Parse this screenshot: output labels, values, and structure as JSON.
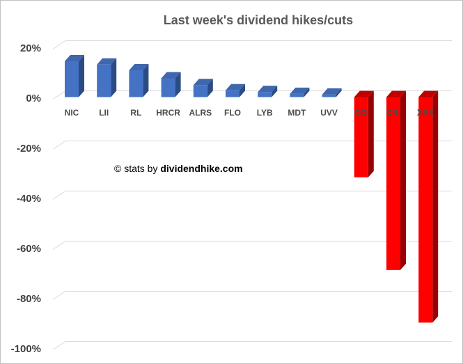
{
  "watermark": {
    "prefix": "© stats by ",
    "brand": "dividendhike.com"
  },
  "colors": {
    "blue_front": "#4472C4",
    "blue_side": "#2B4B84",
    "blue_top": "#3F67AE",
    "red_front": "#FE0000",
    "red_side": "#9B0000",
    "red_top": "#C00000",
    "grid": "#D9D9D9",
    "title_text": "#595959",
    "axis_text": "#404040",
    "category_text": "#4A4A4A",
    "watermark_text": "#000000",
    "frame_border": "#C1C1C1"
  },
  "chart_data": {
    "type": "bar",
    "style": "3d-bar",
    "title": "Last week's dividend hikes/cuts",
    "categories": [
      "NIC",
      "LII",
      "RL",
      "HRCR",
      "ALRS",
      "FLO",
      "LYB",
      "MDT",
      "UVV",
      "CCI",
      "CRI",
      "XRX"
    ],
    "values": [
      14.3,
      13,
      10.7,
      7.5,
      4.8,
      2.7,
      2,
      1.3,
      1,
      -32,
      -69,
      -90
    ],
    "bar_colors": {
      "positive": "#4472C4",
      "negative": "#FE0000"
    },
    "xlabel": "",
    "ylabel": "",
    "ylim": [
      -100,
      20
    ],
    "yticks": [
      20,
      0,
      -20,
      -40,
      -60,
      -80,
      -100
    ],
    "ytick_labels": [
      "20%",
      "0%",
      "-20%",
      "-40%",
      "-60%",
      "-80%",
      "-100%"
    ],
    "grid": true,
    "legend": false,
    "annotation": "© stats by dividendhike.com"
  }
}
